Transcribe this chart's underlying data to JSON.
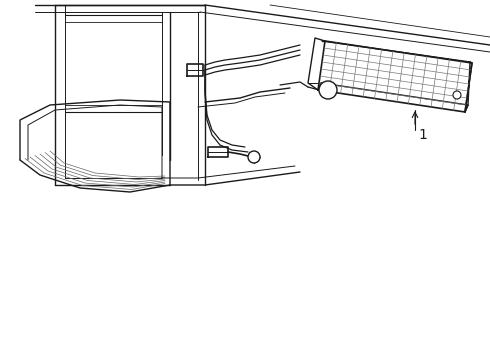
{
  "bg_color": "#ffffff",
  "line_color": "#1a1a1a",
  "line_width": 0.8,
  "label_1": "1",
  "figsize": [
    4.9,
    3.6
  ],
  "dpi": 100
}
